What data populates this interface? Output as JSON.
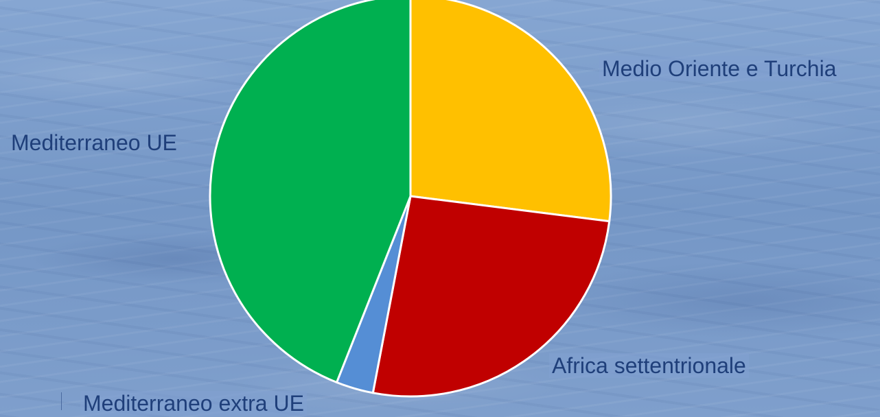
{
  "chart_data": {
    "type": "pie",
    "title": "",
    "slices": [
      {
        "label": "Medio Oriente e Turchia",
        "value": 27,
        "color": "#ffc000"
      },
      {
        "label": "Africa settentrionale",
        "value": 26,
        "color": "#c00000"
      },
      {
        "label": "Mediterraneo extra UE",
        "value": 3,
        "color": "#558ed5"
      },
      {
        "label": "Mediterraneo UE",
        "value": 44,
        "color": "#00b050"
      }
    ],
    "legend": "none"
  }
}
